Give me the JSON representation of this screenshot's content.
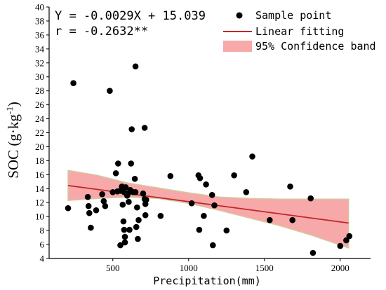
{
  "chart_data": {
    "type": "scatter",
    "xlabel": "Precipitation(mm)",
    "ylabel_main": "SOC (g·kg",
    "ylabel_sup": "-1",
    "ylabel_close": ")",
    "xlim": [
      80,
      2200
    ],
    "ylim": [
      4,
      40
    ],
    "x_ticks": [
      500,
      1000,
      1500,
      2000
    ],
    "y_ticks": [
      4,
      6,
      8,
      10,
      12,
      14,
      16,
      18,
      20,
      22,
      24,
      26,
      28,
      30,
      32,
      34,
      36,
      38,
      40
    ],
    "annotations": {
      "equation": "Y = -0.0029X + 15.039",
      "r_text": "r = -0.2632**"
    },
    "legend": {
      "position": "top-right",
      "entries": [
        "Sample point",
        "Linear fitting",
        "95% Confidence band"
      ]
    },
    "colors": {
      "points": "#000000",
      "fit_line": "#c0262a",
      "band": "#f7a8a8",
      "band_edge": "#d4c9a0"
    },
    "fit": {
      "slope": -0.0029,
      "intercept": 15.039,
      "x_range": [
        205,
        2055
      ]
    },
    "confidence_band": {
      "x": [
        205,
        400,
        600,
        800,
        1000,
        1200,
        1400,
        1600,
        1800,
        2055
      ],
      "lower": [
        12.3,
        12.6,
        12.8,
        12.6,
        11.9,
        10.9,
        9.8,
        8.7,
        7.4,
        5.5
      ],
      "upper": [
        16.6,
        15.9,
        14.8,
        14.1,
        13.4,
        12.8,
        12.6,
        12.5,
        12.5,
        12.5
      ]
    },
    "series": [
      {
        "name": "Sample point",
        "points": [
          [
            205,
            11.2
          ],
          [
            240,
            29.1
          ],
          [
            335,
            12.8
          ],
          [
            340,
            11.5
          ],
          [
            345,
            10.5
          ],
          [
            355,
            8.4
          ],
          [
            390,
            10.9
          ],
          [
            430,
            13.2
          ],
          [
            440,
            12.2
          ],
          [
            450,
            11.5
          ],
          [
            480,
            28.0
          ],
          [
            500,
            13.5
          ],
          [
            520,
            16.2
          ],
          [
            530,
            13.6
          ],
          [
            535,
            17.6
          ],
          [
            550,
            13.7
          ],
          [
            550,
            5.9
          ],
          [
            560,
            14.3
          ],
          [
            565,
            11.7
          ],
          [
            570,
            9.3
          ],
          [
            575,
            8.1
          ],
          [
            575,
            13.5
          ],
          [
            580,
            7.1
          ],
          [
            580,
            6.3
          ],
          [
            585,
            14.2
          ],
          [
            595,
            13.0
          ],
          [
            600,
            13.3
          ],
          [
            605,
            12.1
          ],
          [
            610,
            8.1
          ],
          [
            615,
            13.8
          ],
          [
            620,
            17.6
          ],
          [
            625,
            22.5
          ],
          [
            635,
            13.5
          ],
          [
            645,
            15.4
          ],
          [
            650,
            13.5
          ],
          [
            650,
            31.5
          ],
          [
            655,
            8.5
          ],
          [
            660,
            11.3
          ],
          [
            665,
            6.8
          ],
          [
            670,
            9.5
          ],
          [
            700,
            13.3
          ],
          [
            710,
            22.7
          ],
          [
            710,
            12.5
          ],
          [
            715,
            11.8
          ],
          [
            715,
            10.2
          ],
          [
            720,
            12.4
          ],
          [
            815,
            10.1
          ],
          [
            880,
            15.8
          ],
          [
            1020,
            11.9
          ],
          [
            1065,
            15.9
          ],
          [
            1070,
            8.1
          ],
          [
            1075,
            15.5
          ],
          [
            1100,
            10.1
          ],
          [
            1115,
            14.6
          ],
          [
            1155,
            13.1
          ],
          [
            1160,
            5.9
          ],
          [
            1170,
            11.6
          ],
          [
            1250,
            8.0
          ],
          [
            1300,
            15.9
          ],
          [
            1380,
            13.5
          ],
          [
            1420,
            18.6
          ],
          [
            1535,
            9.5
          ],
          [
            1670,
            14.3
          ],
          [
            1685,
            9.5
          ],
          [
            1805,
            12.6
          ],
          [
            1820,
            4.8
          ],
          [
            2000,
            5.8
          ],
          [
            2040,
            6.6
          ],
          [
            2060,
            7.2
          ]
        ]
      }
    ]
  }
}
